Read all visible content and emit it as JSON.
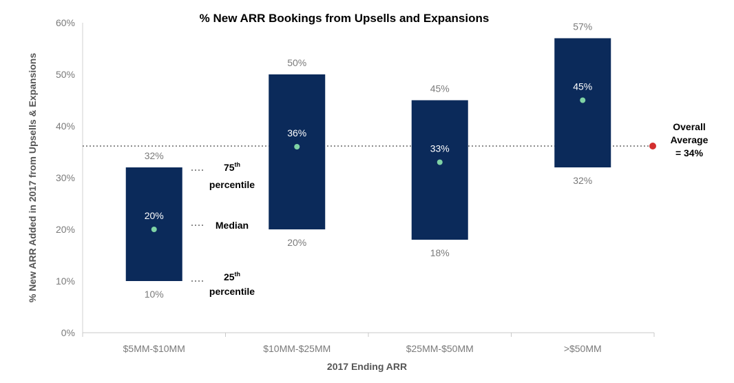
{
  "chart_data": {
    "type": "box_range",
    "title": "% New ARR Bookings from Upsells and Expansions",
    "xlabel": "2017 Ending ARR",
    "ylabel": "% New ARR Added in 2017 from Upsells & Expansions",
    "ylim": [
      0,
      60
    ],
    "yticks": [
      "0%",
      "10%",
      "20%",
      "30%",
      "40%",
      "50%",
      "60%"
    ],
    "categories": [
      "$5MM-$10MM",
      "$10MM-$25MM",
      "$25MM-$50MM",
      ">$50MM"
    ],
    "series": [
      {
        "name": "25th percentile",
        "values": [
          10,
          20,
          18,
          32
        ]
      },
      {
        "name": "Median",
        "values": [
          20,
          36,
          33,
          45
        ]
      },
      {
        "name": "75th percentile",
        "values": [
          32,
          50,
          45,
          57
        ]
      }
    ],
    "labels": {
      "p25": [
        "10%",
        "20%",
        "18%",
        "32%"
      ],
      "median": [
        "20%",
        "36%",
        "33%",
        "45%"
      ],
      "p75": [
        "32%",
        "50%",
        "45%",
        "57%"
      ]
    },
    "overall_average": 34,
    "overall_average_label": [
      "Overall",
      "Average",
      "= 34%"
    ],
    "annotations": {
      "p75": {
        "main": "75",
        "sup": "th",
        "second": "percentile"
      },
      "median": "Median",
      "p25": {
        "main": "25",
        "sup": "th",
        "second": "percentile"
      }
    },
    "colors": {
      "box": "#0b2a5a",
      "median_dot": "#7fd3a5",
      "average_line": "#666666",
      "average_dot": "#d32f2f"
    }
  }
}
